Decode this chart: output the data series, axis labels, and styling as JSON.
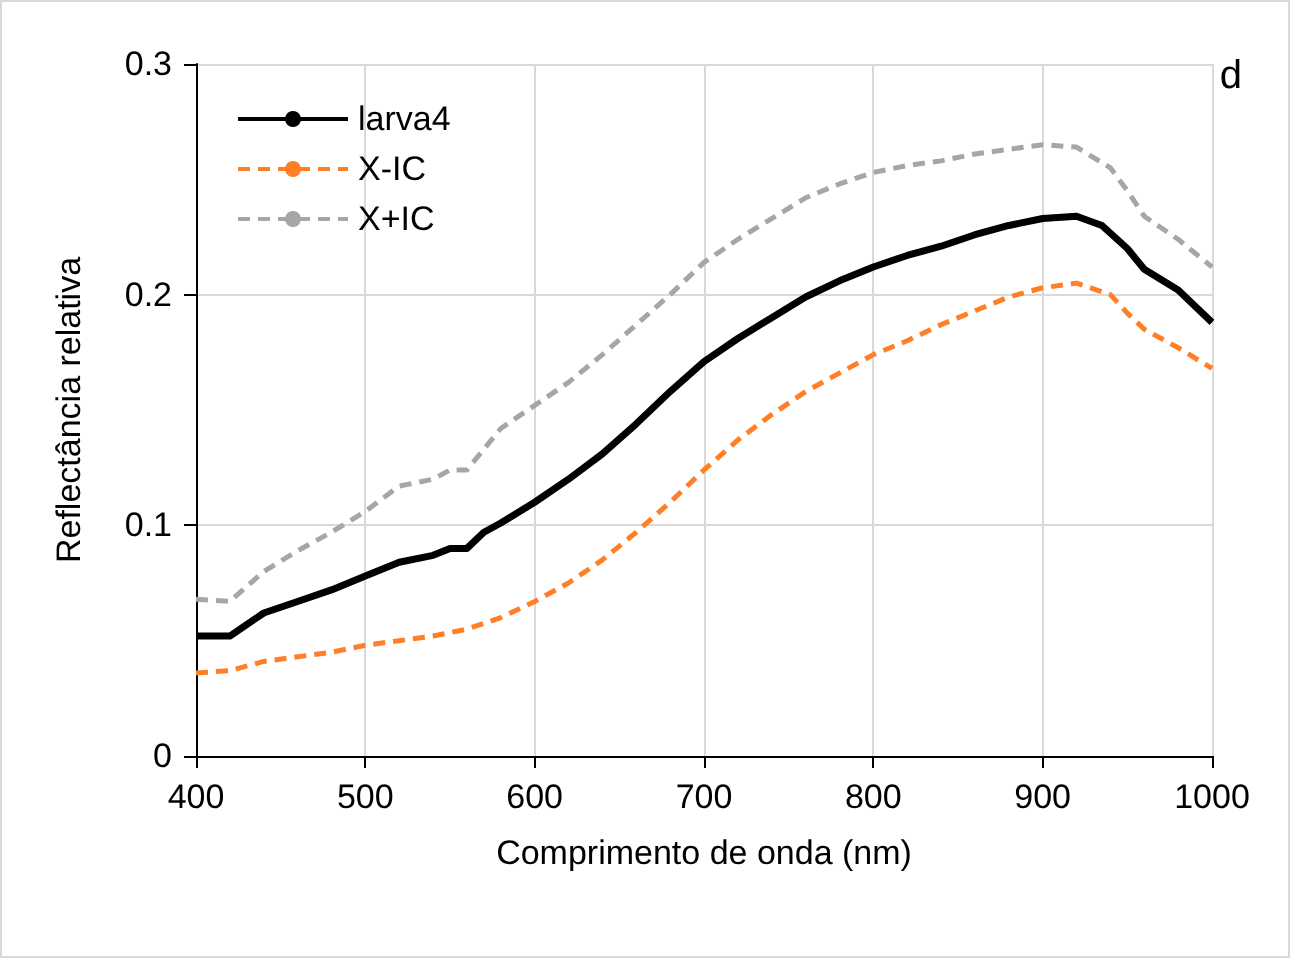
{
  "chart_data": {
    "type": "line",
    "xlabel": "Comprimento de onda (nm)",
    "ylabel": "Reflectância relativa",
    "annotations": [
      "d"
    ],
    "xlim": [
      400,
      1000
    ],
    "xticks": [
      400,
      500,
      600,
      700,
      800,
      900,
      1000
    ],
    "ylim": [
      0,
      0.3
    ],
    "yticks": [
      0,
      0.1,
      0.2,
      0.3
    ],
    "grid": true,
    "legend": "top left",
    "series": [
      {
        "name": "larva4",
        "color": "#000000",
        "line_style": "solid",
        "x": [
          400,
          420,
          440,
          460,
          480,
          500,
          520,
          540,
          550,
          560,
          570,
          580,
          600,
          620,
          640,
          660,
          680,
          700,
          720,
          740,
          760,
          780,
          800,
          820,
          840,
          860,
          880,
          900,
          920,
          935,
          950,
          960,
          980,
          1000
        ],
        "values": [
          0.052,
          0.052,
          0.062,
          0.067,
          0.072,
          0.078,
          0.084,
          0.087,
          0.09,
          0.09,
          0.097,
          0.101,
          0.11,
          0.12,
          0.131,
          0.144,
          0.158,
          0.171,
          0.181,
          0.19,
          0.199,
          0.206,
          0.212,
          0.217,
          0.221,
          0.226,
          0.23,
          0.233,
          0.234,
          0.23,
          0.22,
          0.211,
          0.202,
          0.188
        ]
      },
      {
        "name": "X-IC",
        "color": "#ff7f27",
        "line_style": "dashed",
        "x": [
          400,
          420,
          440,
          460,
          480,
          500,
          520,
          540,
          560,
          580,
          600,
          620,
          640,
          660,
          680,
          700,
          720,
          740,
          760,
          780,
          800,
          820,
          840,
          860,
          880,
          900,
          920,
          940,
          950,
          960,
          980,
          1000
        ],
        "values": [
          0.036,
          0.037,
          0.041,
          0.043,
          0.045,
          0.048,
          0.05,
          0.052,
          0.055,
          0.06,
          0.067,
          0.075,
          0.085,
          0.097,
          0.11,
          0.124,
          0.137,
          0.148,
          0.158,
          0.166,
          0.174,
          0.18,
          0.187,
          0.193,
          0.199,
          0.203,
          0.205,
          0.2,
          0.192,
          0.185,
          0.177,
          0.168
        ]
      },
      {
        "name": "X+IC",
        "color": "#a6a6a6",
        "line_style": "dashed",
        "x": [
          400,
          420,
          440,
          460,
          480,
          500,
          520,
          540,
          550,
          560,
          570,
          580,
          600,
          620,
          640,
          660,
          680,
          700,
          720,
          740,
          760,
          780,
          800,
          820,
          840,
          860,
          880,
          900,
          920,
          940,
          950,
          960,
          980,
          1000
        ],
        "values": [
          0.068,
          0.067,
          0.08,
          0.089,
          0.097,
          0.106,
          0.117,
          0.12,
          0.124,
          0.124,
          0.133,
          0.142,
          0.152,
          0.162,
          0.174,
          0.187,
          0.2,
          0.214,
          0.224,
          0.233,
          0.242,
          0.248,
          0.253,
          0.256,
          0.258,
          0.261,
          0.263,
          0.265,
          0.264,
          0.255,
          0.245,
          0.234,
          0.224,
          0.212
        ]
      }
    ]
  }
}
